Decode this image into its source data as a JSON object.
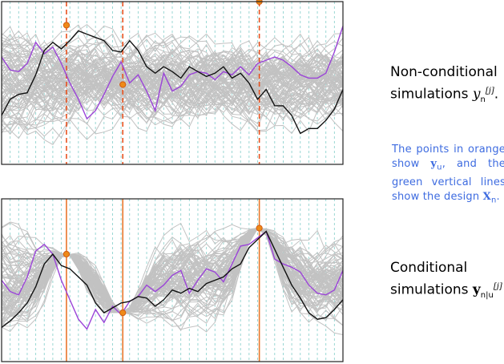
{
  "chart_data": [
    {
      "type": "line",
      "panel": "top",
      "xlim": [
        0,
        1
      ],
      "ylim": [
        0,
        1
      ],
      "grid": true,
      "design_points": [
        0.19,
        0.355,
        0.755
      ],
      "observations": [
        0.855,
        0.49,
        1.0
      ],
      "conditioning_lines": "dashed",
      "highlight_series": [
        {
          "color": "purple",
          "values": [
            0.66,
            0.58,
            0.57,
            0.62,
            0.75,
            0.68,
            0.72,
            0.62,
            0.5,
            0.4,
            0.28,
            0.33,
            0.43,
            0.54,
            0.63,
            0.5,
            0.55,
            0.45,
            0.33,
            0.56,
            0.45,
            0.48,
            0.55,
            0.57,
            0.56,
            0.52,
            0.57,
            0.55,
            0.6,
            0.55,
            0.62,
            0.64,
            0.66,
            0.64,
            0.6,
            0.55,
            0.53,
            0.53,
            0.56,
            0.69,
            0.85
          ]
        },
        {
          "color": "black",
          "values": [
            0.3,
            0.4,
            0.43,
            0.44,
            0.55,
            0.7,
            0.75,
            0.71,
            0.76,
            0.82,
            0.8,
            0.78,
            0.76,
            0.7,
            0.69,
            0.76,
            0.7,
            0.6,
            0.56,
            0.6,
            0.57,
            0.53,
            0.6,
            0.57,
            0.54,
            0.56,
            0.6,
            0.53,
            0.56,
            0.5,
            0.4,
            0.46,
            0.36,
            0.36,
            0.3,
            0.19,
            0.22,
            0.22,
            0.27,
            0.34,
            0.46
          ]
        }
      ]
    },
    {
      "type": "line",
      "panel": "bottom",
      "xlim": [
        0,
        1
      ],
      "ylim": [
        0,
        1
      ],
      "grid": true,
      "design_points": [
        0.19,
        0.355,
        0.755
      ],
      "observations": [
        0.66,
        0.3,
        0.82
      ],
      "conditioning_lines": "solid",
      "highlight_series": [
        {
          "color": "purple",
          "values": [
            0.5,
            0.43,
            0.41,
            0.52,
            0.68,
            0.72,
            0.66,
            0.5,
            0.38,
            0.26,
            0.2,
            0.32,
            0.24,
            0.34,
            0.29,
            0.37,
            0.4,
            0.47,
            0.43,
            0.47,
            0.53,
            0.56,
            0.42,
            0.5,
            0.57,
            0.55,
            0.49,
            0.6,
            0.71,
            0.72,
            0.76,
            0.8,
            0.63,
            0.6,
            0.58,
            0.55,
            0.47,
            0.42,
            0.41,
            0.44,
            0.56
          ]
        },
        {
          "color": "black",
          "values": [
            0.21,
            0.25,
            0.3,
            0.36,
            0.46,
            0.6,
            0.66,
            0.59,
            0.57,
            0.52,
            0.47,
            0.36,
            0.3,
            0.33,
            0.36,
            0.37,
            0.4,
            0.39,
            0.34,
            0.38,
            0.44,
            0.42,
            0.45,
            0.43,
            0.48,
            0.5,
            0.52,
            0.57,
            0.6,
            0.7,
            0.75,
            0.8,
            0.69,
            0.58,
            0.47,
            0.39,
            0.3,
            0.26,
            0.27,
            0.32,
            0.38
          ]
        }
      ]
    }
  ],
  "labels": {
    "top_pre": "Non-conditional simulations ",
    "top_var": "y",
    "top_sub": "n",
    "top_sup": "[j]",
    "top_post": ".",
    "note_pre": "The points in orange show ",
    "note_y": "y",
    "note_ysub": "u",
    "note_mid": ", and the green vertical lines show the design ",
    "note_x": "X",
    "note_xsub": "n",
    "note_post": ".",
    "bottom_pre": "Conditional simulations ",
    "bottom_var": "y",
    "bottom_sub": "n|u",
    "bottom_sup": "[j]"
  },
  "colors": {
    "simulations": "#c2c2c2",
    "grid": "#8fd3cf",
    "highlight_purple": "#9b44d8",
    "highlight_black": "#111111",
    "orange": "#ee8a18",
    "dashed_line": "#e8521f",
    "solid_line": "#e8762a",
    "note_text": "#3d6be0",
    "frame": "#222222"
  }
}
